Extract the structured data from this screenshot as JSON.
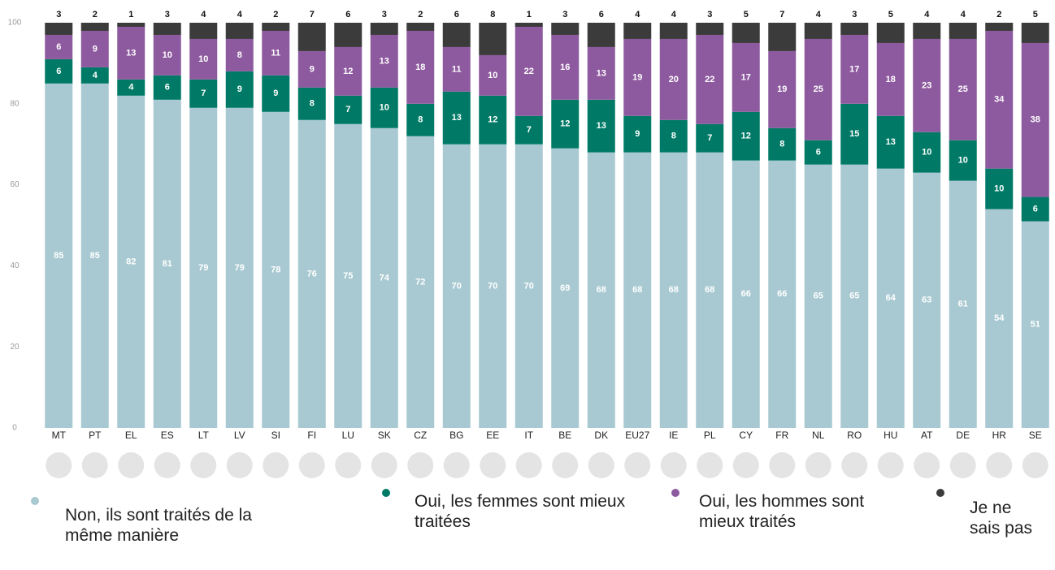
{
  "chart_data": {
    "type": "bar",
    "stacked": true,
    "categories": [
      "MT",
      "PT",
      "EL",
      "ES",
      "LT",
      "LV",
      "SI",
      "FI",
      "LU",
      "SK",
      "CZ",
      "BG",
      "EE",
      "IT",
      "BE",
      "DK",
      "EU27",
      "IE",
      "PL",
      "CY",
      "FR",
      "NL",
      "RO",
      "HU",
      "AT",
      "DE",
      "HR",
      "SE"
    ],
    "series": [
      {
        "name": "Non, ils sont traités de la même manière",
        "color": "#a8c9d1",
        "values": [
          85,
          85,
          82,
          81,
          79,
          79,
          78,
          76,
          75,
          74,
          72,
          70,
          70,
          70,
          69,
          68,
          68,
          68,
          68,
          66,
          66,
          65,
          65,
          64,
          63,
          61,
          54,
          51
        ]
      },
      {
        "name": "Oui, les femmes sont mieux traitées",
        "color": "#007a66",
        "values": [
          6,
          4,
          4,
          6,
          7,
          9,
          9,
          8,
          7,
          10,
          8,
          13,
          12,
          7,
          12,
          13,
          9,
          8,
          7,
          12,
          8,
          6,
          15,
          13,
          10,
          10,
          10,
          6
        ]
      },
      {
        "name": "Oui, les hommes sont mieux traités",
        "color": "#8e5a9f",
        "values": [
          6,
          9,
          13,
          10,
          10,
          8,
          11,
          9,
          12,
          13,
          18,
          11,
          10,
          22,
          16,
          13,
          19,
          20,
          22,
          17,
          19,
          25,
          17,
          18,
          23,
          25,
          34,
          38
        ]
      },
      {
        "name": "Je ne sais pas",
        "color": "#3b3b3b",
        "values": [
          3,
          2,
          1,
          3,
          4,
          4,
          2,
          7,
          6,
          3,
          2,
          6,
          8,
          1,
          3,
          6,
          4,
          4,
          3,
          5,
          7,
          4,
          3,
          5,
          4,
          4,
          2,
          5
        ]
      }
    ],
    "ylim": [
      0,
      100
    ],
    "yticks": [
      0,
      20,
      40,
      60,
      80,
      100
    ]
  }
}
